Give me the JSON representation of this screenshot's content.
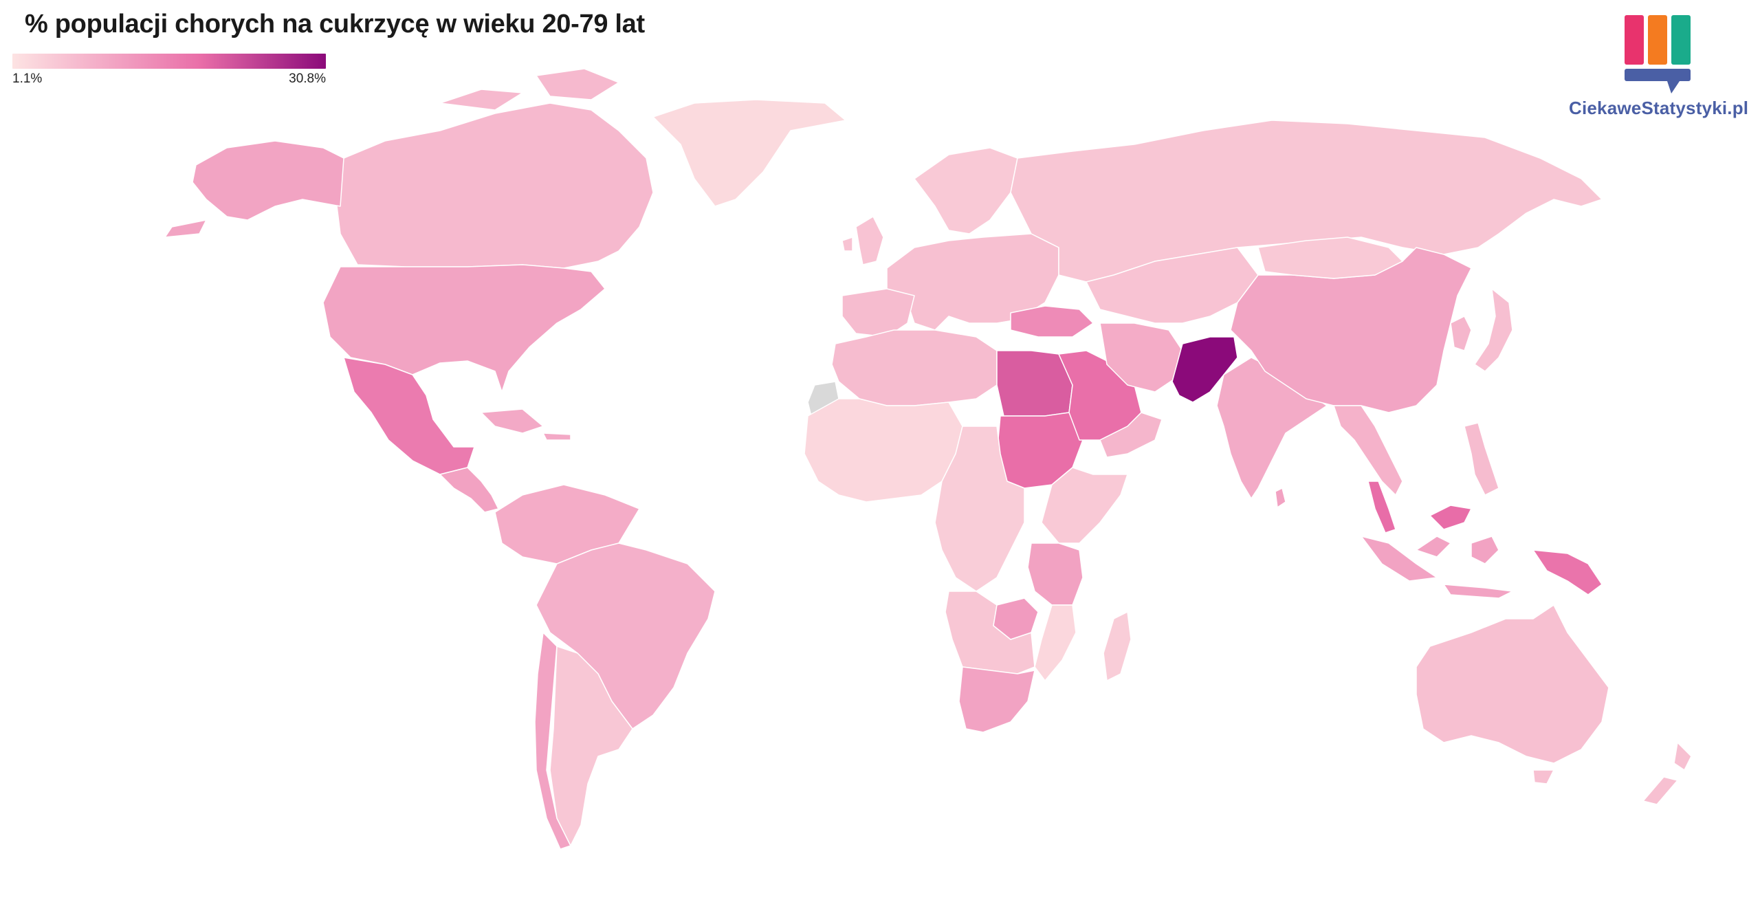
{
  "title": "% populacji chorych na cukrzycę w wieku 20-79 lat",
  "legend": {
    "min_label": "1.1%",
    "max_label": "30.8%",
    "min_value": 1.1,
    "max_value": 30.8,
    "color_low": "#fde3e3",
    "color_high": "#8b0a7a"
  },
  "brand": {
    "name": "CiekaweStatystyki.pl",
    "colors": [
      "#e8336d",
      "#f47b20",
      "#1aab8b",
      "#4a5fa5"
    ]
  },
  "map_data": {
    "type": "choropleth",
    "no_data_color": "#d9d9d9",
    "regions": [
      {
        "id": "canada",
        "value": 7.5
      },
      {
        "id": "usa",
        "value": 10.7
      },
      {
        "id": "alaska",
        "value": 10.7
      },
      {
        "id": "greenland",
        "value": 2.5
      },
      {
        "id": "mexico",
        "value": 16.9
      },
      {
        "id": "central-america",
        "value": 11.0
      },
      {
        "id": "caribbean",
        "value": 10.0
      },
      {
        "id": "south-america-north",
        "value": 9.5
      },
      {
        "id": "brazil",
        "value": 8.8
      },
      {
        "id": "chile",
        "value": 10.8
      },
      {
        "id": "argentina",
        "value": 5.4
      },
      {
        "id": "europe",
        "value": 6.5
      },
      {
        "id": "iberia",
        "value": 7.0
      },
      {
        "id": "uk",
        "value": 6.0
      },
      {
        "id": "scandinavia",
        "value": 5.0
      },
      {
        "id": "russia",
        "value": 5.5
      },
      {
        "id": "turkey",
        "value": 14.5
      },
      {
        "id": "north-africa",
        "value": 7.0
      },
      {
        "id": "western-sahara",
        "value": null
      },
      {
        "id": "egypt",
        "value": 20.9
      },
      {
        "id": "sudan",
        "value": 18.9
      },
      {
        "id": "west-africa",
        "value": 3.0
      },
      {
        "id": "central-africa",
        "value": 4.5
      },
      {
        "id": "east-africa",
        "value": 5.0
      },
      {
        "id": "tanzania",
        "value": 11.0
      },
      {
        "id": "southern-africa",
        "value": 5.5
      },
      {
        "id": "zimbabwe",
        "value": 12.0
      },
      {
        "id": "mozambique",
        "value": 3.0
      },
      {
        "id": "south-africa",
        "value": 10.8
      },
      {
        "id": "madagascar",
        "value": 4.5
      },
      {
        "id": "saudi-arabia",
        "value": 18.7
      },
      {
        "id": "arabia-south",
        "value": 8.0
      },
      {
        "id": "iran",
        "value": 9.5
      },
      {
        "id": "central-asia",
        "value": 6.0
      },
      {
        "id": "pakistan",
        "value": 30.8
      },
      {
        "id": "india",
        "value": 9.6
      },
      {
        "id": "china",
        "value": 10.6
      },
      {
        "id": "mongolia",
        "value": 5.0
      },
      {
        "id": "japan",
        "value": 6.6
      },
      {
        "id": "korea",
        "value": 8.0
      },
      {
        "id": "southeast-asia",
        "value": 8.5
      },
      {
        "id": "malaysia",
        "value": 19.0
      },
      {
        "id": "indonesia",
        "value": 10.8
      },
      {
        "id": "philippines",
        "value": 7.0
      },
      {
        "id": "papua-new-guinea",
        "value": 18.0
      },
      {
        "id": "australia",
        "value": 6.4
      },
      {
        "id": "new-zealand",
        "value": 6.5
      },
      {
        "id": "sri-lanka",
        "value": 11.0
      }
    ]
  }
}
